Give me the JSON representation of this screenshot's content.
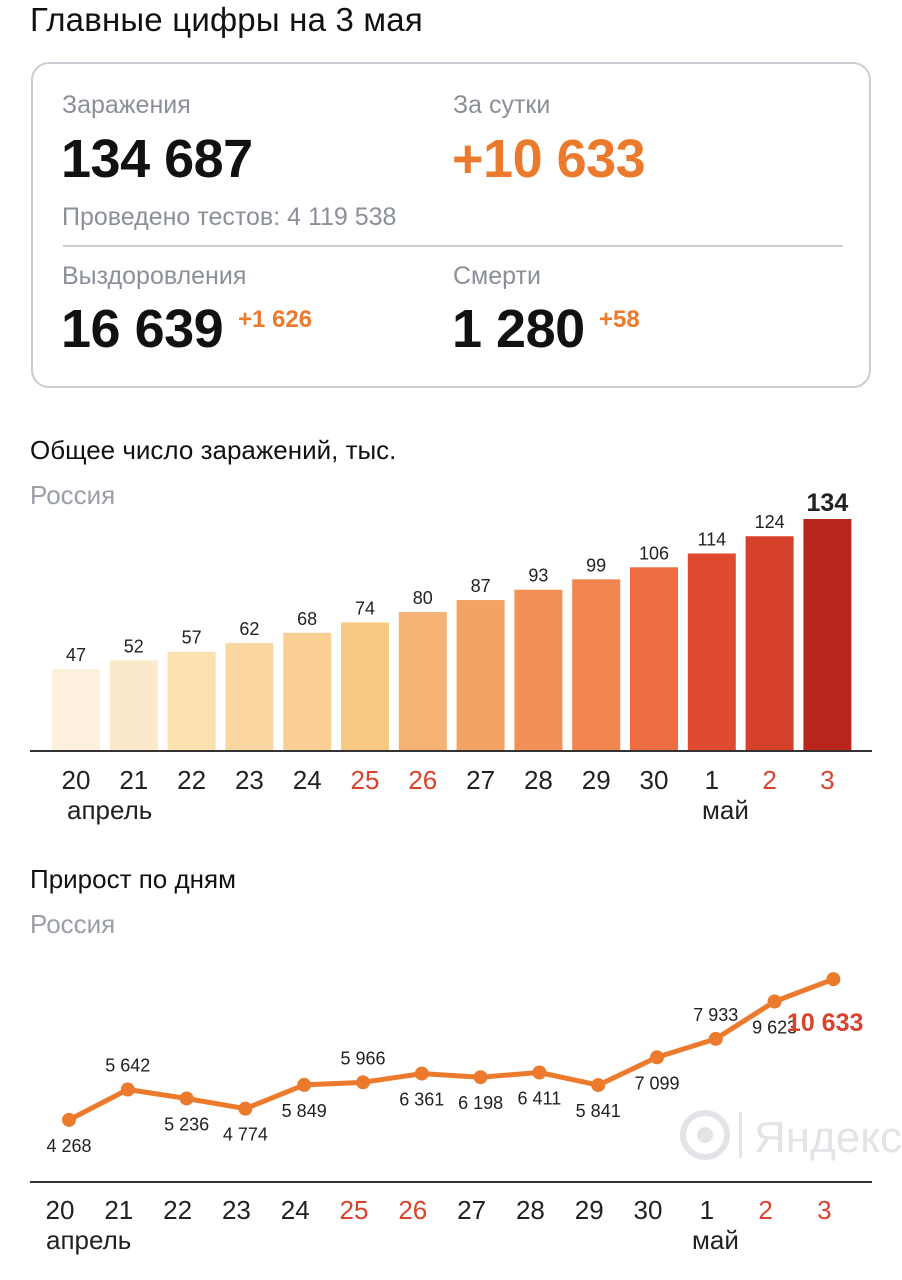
{
  "title": "Главные цифры на 3 мая",
  "summary": {
    "infections_label": "Заражения",
    "infections_value": "134 687",
    "per_day_label": "За сутки",
    "per_day_value": "+10 633",
    "tests_line": "Проведено тестов: 4 119 538",
    "recovered_label": "Выздоровления",
    "recovered_value": "16 639",
    "recovered_delta": "+1 626",
    "deaths_label": "Смерти",
    "deaths_value": "1 280",
    "deaths_delta": "+58"
  },
  "colors": {
    "accent_orange": "#ec7a2c",
    "weekend_red": "#d9432b",
    "bar_gradient": [
      "#fdf0dc",
      "#fce9c9",
      "#fbe0b0",
      "#fad7a0",
      "#f9cf93",
      "#f8c984",
      "#f6b274",
      "#f5a362",
      "#f48f55",
      "#f2854f",
      "#ed6d43",
      "#e04a30",
      "#d5402a",
      "#b8261d"
    ]
  },
  "chart_data": [
    {
      "type": "bar",
      "title": "Общее число заражений, тыс.",
      "subtitle": "Россия",
      "categories": [
        "20",
        "21",
        "22",
        "23",
        "24",
        "25",
        "26",
        "27",
        "28",
        "29",
        "30",
        "1",
        "2",
        "3"
      ],
      "values": [
        47,
        52,
        57,
        62,
        68,
        74,
        80,
        87,
        93,
        99,
        106,
        114,
        124,
        134
      ],
      "weekend_days": [
        "25",
        "26",
        "2",
        "3"
      ],
      "month_labels": [
        {
          "text": "апрель",
          "at": "20"
        },
        {
          "text": "май",
          "at": "1"
        }
      ],
      "ylim": [
        0,
        134
      ],
      "grid": false,
      "legend": "none"
    },
    {
      "type": "line",
      "title": "Прирост по дням",
      "subtitle": "Россия",
      "categories": [
        "20",
        "21",
        "22",
        "23",
        "24",
        "25",
        "26",
        "27",
        "28",
        "29",
        "30",
        "1",
        "2",
        "3"
      ],
      "values": [
        4268,
        5642,
        5236,
        4774,
        5849,
        5966,
        6361,
        6198,
        6411,
        5841,
        7099,
        7933,
        9623,
        10633
      ],
      "value_labels": [
        "4 268",
        "5 642",
        "5 236",
        "4 774",
        "5 849",
        "5 966",
        "6 361",
        "6 198",
        "6 411",
        "5 841",
        "7 099",
        "7 933",
        "9 623",
        "10 633"
      ],
      "weekend_days": [
        "25",
        "26",
        "2",
        "3"
      ],
      "month_labels": [
        {
          "text": "апрель",
          "at": "20"
        },
        {
          "text": "май",
          "at": "1"
        }
      ],
      "ylim": [
        2000,
        11500
      ],
      "grid": false,
      "legend": "none",
      "watermark": "Яндекс"
    }
  ]
}
